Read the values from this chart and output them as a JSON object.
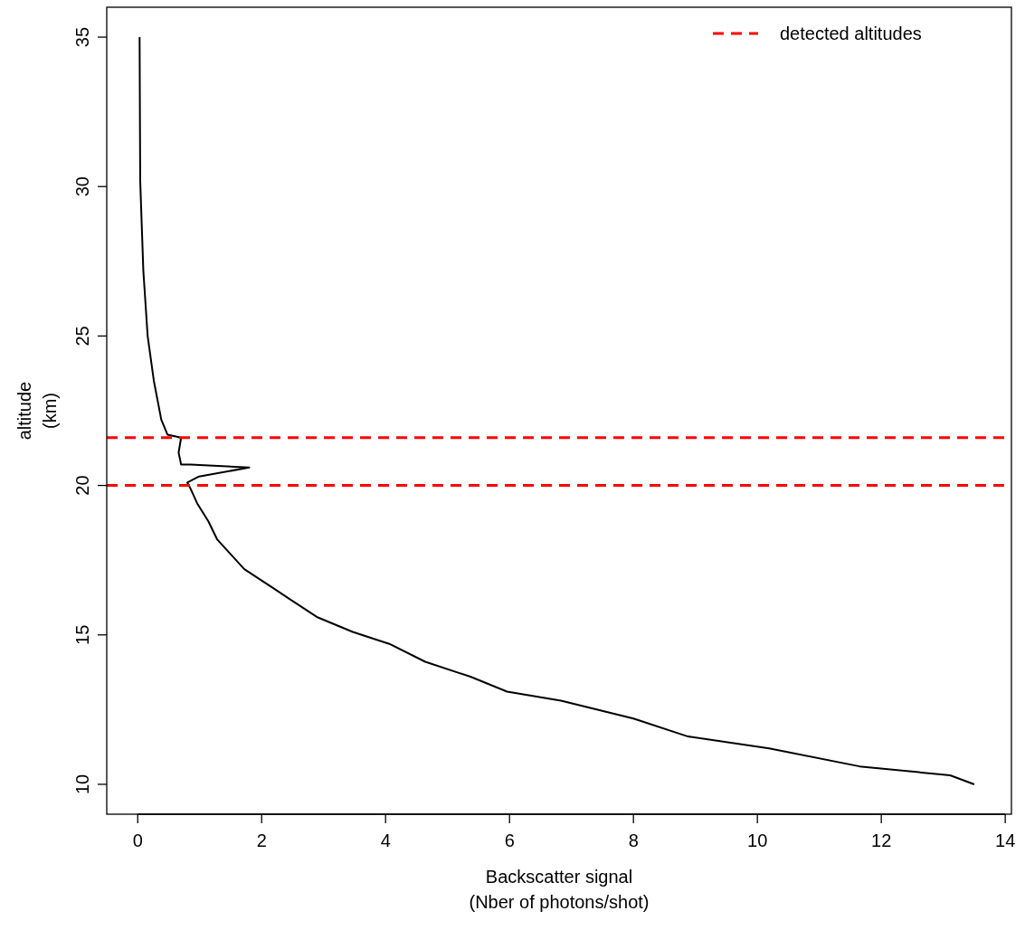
{
  "chart_data": {
    "type": "line",
    "xlabel": "Backscatter signal\n(Nber of photons/shot)",
    "ylabel": "altitude\n(km)",
    "xlim": [
      -0.5,
      14.1
    ],
    "ylim": [
      9,
      36
    ],
    "xticks": [
      0,
      2,
      4,
      6,
      8,
      10,
      12,
      14
    ],
    "yticks": [
      10,
      15,
      20,
      25,
      30,
      35
    ],
    "series": [
      {
        "color": "#000000",
        "x": [
          0.03,
          0.04,
          0.09,
          0.16,
          0.26,
          0.38,
          0.48,
          0.7,
          0.66,
          0.7,
          0.85,
          1.8,
          0.99,
          0.8,
          0.85,
          0.96,
          1.14,
          1.28,
          1.5,
          1.72,
          2.16,
          2.45,
          2.89,
          3.47,
          4.06,
          4.64,
          5.37,
          5.96,
          6.83,
          8.0,
          8.88,
          10.19,
          11.65,
          13.11,
          13.5
        ],
        "values": [
          35,
          30.2,
          27.2,
          25.0,
          23.5,
          22.2,
          21.7,
          21.6,
          21.1,
          20.7,
          20.7,
          20.6,
          20.3,
          20.1,
          19.9,
          19.4,
          18.8,
          18.2,
          17.7,
          17.2,
          16.6,
          16.2,
          15.6,
          15.1,
          14.7,
          14.1,
          13.6,
          13.1,
          12.8,
          12.2,
          11.6,
          11.2,
          10.6,
          10.3,
          10.0
        ]
      }
    ],
    "ref_lines": [
      {
        "axis": "y",
        "value": 21.6,
        "label": "detected altitudes",
        "color": "#ff0000",
        "line_style": "dashed"
      },
      {
        "axis": "y",
        "value": 20.0,
        "color": "#ff0000",
        "line_style": "dashed"
      }
    ],
    "legend": "top right",
    "grid": false,
    "marker": "none",
    "line_style": "solid"
  }
}
